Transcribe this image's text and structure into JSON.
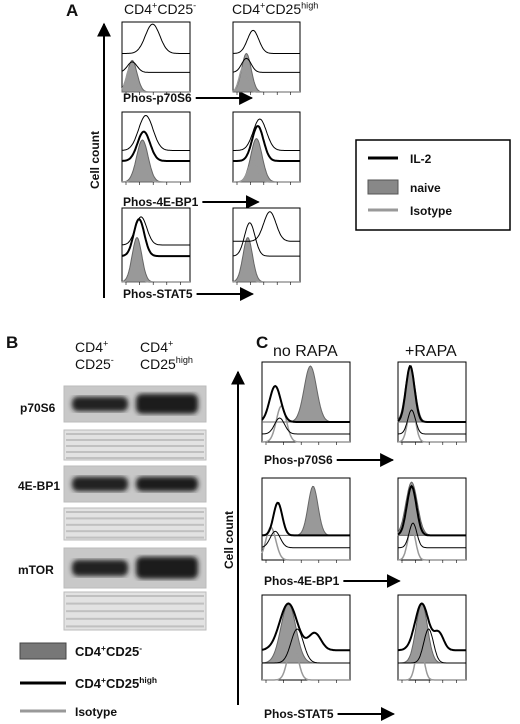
{
  "panel_a": {
    "label": "A",
    "columns": [
      [
        "CD4",
        "+",
        "CD25",
        "-"
      ],
      [
        "CD4",
        "+",
        "CD25",
        "high"
      ]
    ],
    "y_label": "Cell count",
    "rows": [
      "Phos-p70S6",
      "Phos-4E-BP1",
      "Phos-STAT5"
    ],
    "legend": [
      "IL-2",
      "naive",
      "Isotype"
    ]
  },
  "panel_b": {
    "label": "B",
    "columns": [
      [
        "CD4",
        "+",
        "CD25",
        "-"
      ],
      [
        "CD4",
        "+",
        "CD25",
        "high"
      ]
    ],
    "rows": [
      "p70S6",
      "4E-BP1",
      "mTOR"
    ],
    "legend": [
      [
        "CD4",
        "+",
        "CD25",
        "-"
      ],
      [
        "CD4",
        "+",
        "CD25",
        "high"
      ],
      "Isotype"
    ]
  },
  "panel_c": {
    "label": "C",
    "columns": [
      "no RAPA",
      "+RAPA"
    ],
    "y_label": "Cell count",
    "rows": [
      "Phos-p70S6",
      "Phos-4E-BP1",
      "Phos-STAT5"
    ]
  }
}
